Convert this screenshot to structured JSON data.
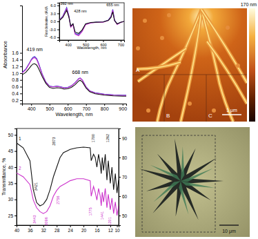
{
  "chart_data": [
    {
      "type": "line",
      "x_label": "Wavelength, nm",
      "y_label": "Absorbance",
      "xlim": [
        350,
        920
      ],
      "xticks": [
        400,
        500,
        600,
        700,
        800,
        900
      ],
      "ylim": [
        0.1,
        3.0
      ],
      "yticks": [
        0.2,
        0.4,
        0.6,
        0.8,
        {
          "value": 1,
          "label": "1.0"
        },
        1.2,
        1.4,
        1.6
      ],
      "x": [
        350,
        370,
        390,
        400,
        410,
        419,
        430,
        440,
        460,
        480,
        500,
        520,
        540,
        560,
        580,
        600,
        620,
        640,
        660,
        668,
        680,
        700,
        720,
        750,
        800,
        850,
        900,
        920
      ],
      "series": [
        {
          "color": "#3333cc",
          "values": [
            1.02,
            1.12,
            1.3,
            1.4,
            1.47,
            1.49,
            1.43,
            1.3,
            0.98,
            0.74,
            0.62,
            0.6,
            0.62,
            0.6,
            0.57,
            0.58,
            0.63,
            0.72,
            0.84,
            0.86,
            0.8,
            0.6,
            0.48,
            0.42,
            0.38,
            0.36,
            0.35,
            0.35
          ]
        },
        {
          "color": "#cc33cc",
          "values": [
            1.0,
            1.1,
            1.28,
            1.38,
            1.44,
            1.46,
            1.4,
            1.27,
            0.96,
            0.73,
            0.61,
            0.59,
            0.61,
            0.59,
            0.56,
            0.57,
            0.62,
            0.71,
            0.83,
            0.85,
            0.79,
            0.59,
            0.47,
            0.41,
            0.37,
            0.35,
            0.34,
            0.34
          ]
        },
        {
          "color": "#111111",
          "values": [
            0.95,
            1.02,
            1.15,
            1.22,
            1.27,
            1.28,
            1.24,
            1.14,
            0.9,
            0.7,
            0.58,
            0.55,
            0.57,
            0.56,
            0.53,
            0.54,
            0.58,
            0.66,
            0.77,
            0.79,
            0.74,
            0.56,
            0.45,
            0.39,
            0.35,
            0.33,
            0.32,
            0.32
          ]
        }
      ],
      "annotations": [
        {
          "text": "419 nm",
          "x": 419,
          "y": 1.65
        },
        {
          "text": "668 nm",
          "x": 668,
          "y": 0.98
        }
      ]
    },
    {
      "type": "line",
      "x_label": "Wavelength, nm",
      "y_label": "First derivative, dA/dλ",
      "xlim": [
        350,
        720
      ],
      "xticks": [
        400,
        500,
        600,
        700
      ],
      "ylim": [
        -7,
        7
      ],
      "yticks": [
        {
          "value": -6,
          "label": "-6.0"
        },
        {
          "value": -3,
          "label": "-3.0"
        },
        {
          "value": 0,
          "label": "0.0"
        },
        {
          "value": 3,
          "label": "3.0"
        },
        {
          "value": 6,
          "label": "6.0"
        }
      ],
      "x": [
        350,
        370,
        392,
        405,
        415,
        428,
        440,
        460,
        480,
        500,
        530,
        560,
        600,
        630,
        645,
        655,
        665,
        680,
        700,
        720
      ],
      "series": [
        {
          "color": "#3333cc",
          "values": [
            0.5,
            2.0,
            5.2,
            2.0,
            -2.0,
            -1.0,
            -4.5,
            -5.0,
            -3.5,
            -1.0,
            -0.5,
            -0.3,
            -0.2,
            0.5,
            2.0,
            4.5,
            0.5,
            -1.0,
            -0.3,
            0.0
          ]
        },
        {
          "color": "#cc33cc",
          "values": [
            0.4,
            1.8,
            4.8,
            1.8,
            -2.2,
            -1.2,
            -4.8,
            -5.4,
            -3.8,
            -1.2,
            -0.6,
            -0.4,
            -0.3,
            0.4,
            1.8,
            4.2,
            0.3,
            -1.2,
            -0.4,
            0.0
          ]
        },
        {
          "color": "#111111",
          "values": [
            0.3,
            1.5,
            4.2,
            1.5,
            -1.8,
            -0.9,
            -4.0,
            -4.5,
            -3.2,
            -0.9,
            -0.4,
            -0.3,
            -0.2,
            0.4,
            1.5,
            3.6,
            0.3,
            -0.9,
            -0.3,
            0.0
          ]
        }
      ],
      "annotations": [
        {
          "text": "392 nm",
          "x": 392,
          "y": 6.3
        },
        {
          "text": "428 nm",
          "x": 470,
          "y": 3.5
        },
        {
          "text": "655 nm",
          "x": 655,
          "y": 5.6
        }
      ]
    },
    {
      "type": "line",
      "y_label": "Transmittance, %",
      "xlim": [
        40,
        9.5
      ],
      "xticks": [
        40,
        36,
        32,
        28,
        24,
        20,
        16,
        12,
        10
      ],
      "ylim": [
        22,
        52
      ],
      "yticks": [
        25,
        30,
        35,
        40,
        45,
        50
      ],
      "y2lim": [
        45,
        95
      ],
      "y2ticks": [
        50,
        60,
        70,
        80,
        90
      ],
      "x": [
        40,
        38,
        36,
        35,
        34,
        33,
        32,
        31,
        30,
        29,
        28,
        27,
        26,
        25,
        24,
        22,
        20,
        18,
        17.7,
        17,
        16.5,
        16,
        15.5,
        15,
        14.7,
        14.4,
        14,
        13.5,
        13,
        12.6,
        12,
        11.5,
        11,
        10.5,
        10,
        9.5
      ],
      "series": [
        {
          "name": "1",
          "color": "#111111",
          "values": [
            47.5,
            46,
            42,
            33,
            29,
            28,
            28.5,
            30,
            33,
            37,
            40,
            43,
            44.5,
            45,
            45.5,
            46,
            46.2,
            46,
            42,
            44,
            43,
            40,
            44,
            41,
            38,
            43,
            39,
            44,
            36,
            42,
            35,
            40,
            33,
            38,
            32,
            36
          ]
        },
        {
          "name": "2",
          "color": "#cc33cc",
          "axis": "y2",
          "values": [
            72,
            70,
            66,
            58,
            54,
            52,
            51,
            52,
            55,
            60,
            63,
            65,
            66,
            67,
            68,
            69,
            69,
            68,
            60,
            65,
            62,
            58,
            64,
            60,
            55,
            62,
            57,
            64,
            54,
            61,
            53,
            59,
            51,
            57,
            50,
            55
          ]
        }
      ],
      "annotations": [
        {
          "text": "3421",
          "x": 34.21,
          "y": 34
        },
        {
          "text": "2873",
          "x": 28.73,
          "y": 48
        },
        {
          "text": "1700",
          "x": 17.0,
          "y": 49
        },
        {
          "text": "1262",
          "x": 12.62,
          "y": 49
        },
        {
          "text": "3443",
          "x": 34.43,
          "y": 48,
          "axis": "y2"
        },
        {
          "text": "3096",
          "x": 30.96,
          "y": 47,
          "axis": "y2"
        },
        {
          "text": "2756",
          "x": 27.56,
          "y": 58,
          "axis": "y2"
        },
        {
          "text": "1775",
          "x": 17.75,
          "y": 52,
          "axis": "y2"
        },
        {
          "text": "1441",
          "x": 14.41,
          "y": 50,
          "axis": "y2"
        },
        {
          "text": "1201",
          "x": 12.01,
          "y": 47,
          "axis": "y2"
        }
      ]
    }
  ],
  "images": {
    "afm": {
      "labels": [
        "A",
        "B",
        "C"
      ],
      "scale_bar": "1 μm",
      "colorbar_label": "170 nm"
    },
    "micrograph": {
      "scale_bar": "10 μm"
    }
  }
}
